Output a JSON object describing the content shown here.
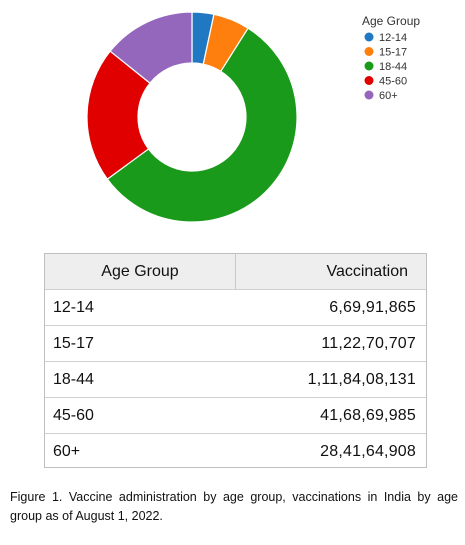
{
  "chart_data": {
    "type": "pie",
    "donut": true,
    "legend_title": "Age Group",
    "legend_position": "top-right",
    "categories": [
      "12-14",
      "15-17",
      "18-44",
      "45-60",
      "60+"
    ],
    "values": [
      66991865,
      112270707,
      1118408131,
      416869985,
      284164908
    ],
    "colors": [
      "#1f78c1",
      "#ff7f0e",
      "#1a9a1a",
      "#e00000",
      "#9467bd"
    ]
  },
  "table": {
    "headers": [
      "Age Group",
      "Vaccination"
    ],
    "rows": [
      [
        "12-14",
        "6,69,91,865"
      ],
      [
        "15-17",
        "11,22,70,707"
      ],
      [
        "18-44",
        "1,11,84,08,131"
      ],
      [
        "45-60",
        "41,68,69,985"
      ],
      [
        "60+",
        "28,41,64,908"
      ]
    ]
  },
  "caption": {
    "label": "Figure 1.",
    "text": " Vaccine administration by age group, vaccinations in India by age group as of August 1, 2022."
  }
}
